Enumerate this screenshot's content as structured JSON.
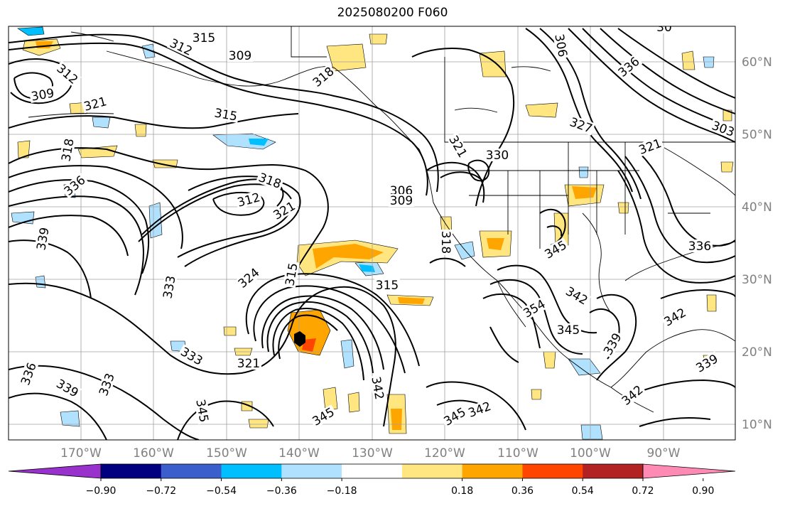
{
  "title": "2025080200 F060",
  "lon_labels": [
    "170°W",
    "160°W",
    "150°W",
    "140°W",
    "130°W",
    "120°W",
    "110°W",
    "100°W",
    "90°W"
  ],
  "lat_labels": [
    "60°N",
    "50°N",
    "40°N",
    "30°N",
    "20°N",
    "10°N"
  ],
  "colorbar": {
    "tick_labels": [
      "−0.90",
      "−0.72",
      "−0.54",
      "−0.36",
      "−0.18",
      "0.18",
      "0.36",
      "0.54",
      "0.72",
      "0.90"
    ],
    "colors": [
      "#9932cc",
      "#000080",
      "#3a5fcd",
      "#00bfff",
      "#b0e2ff",
      "#ffffff",
      "#ffe680",
      "#ffa500",
      "#ff4500",
      "#b22222",
      "#ff8bb5"
    ]
  },
  "contour_labels": [
    "315",
    "312",
    "309",
    "309",
    "312",
    "321",
    "318",
    "336",
    "339",
    "318",
    "312",
    "321",
    "315",
    "324",
    "315",
    "333",
    "333",
    "336",
    "339",
    "333",
    "345",
    "321",
    "315",
    "345",
    "342",
    "345",
    "342",
    "306",
    "309",
    "321",
    "330",
    "318",
    "345",
    "354",
    "342",
    "345",
    "336",
    "339",
    "342",
    "339",
    "342",
    "336",
    "327",
    "321",
    "303",
    "306",
    "30",
    "318"
  ],
  "colors": {
    "contour": "#000000",
    "grid": "#808080",
    "coast": "#000000"
  }
}
